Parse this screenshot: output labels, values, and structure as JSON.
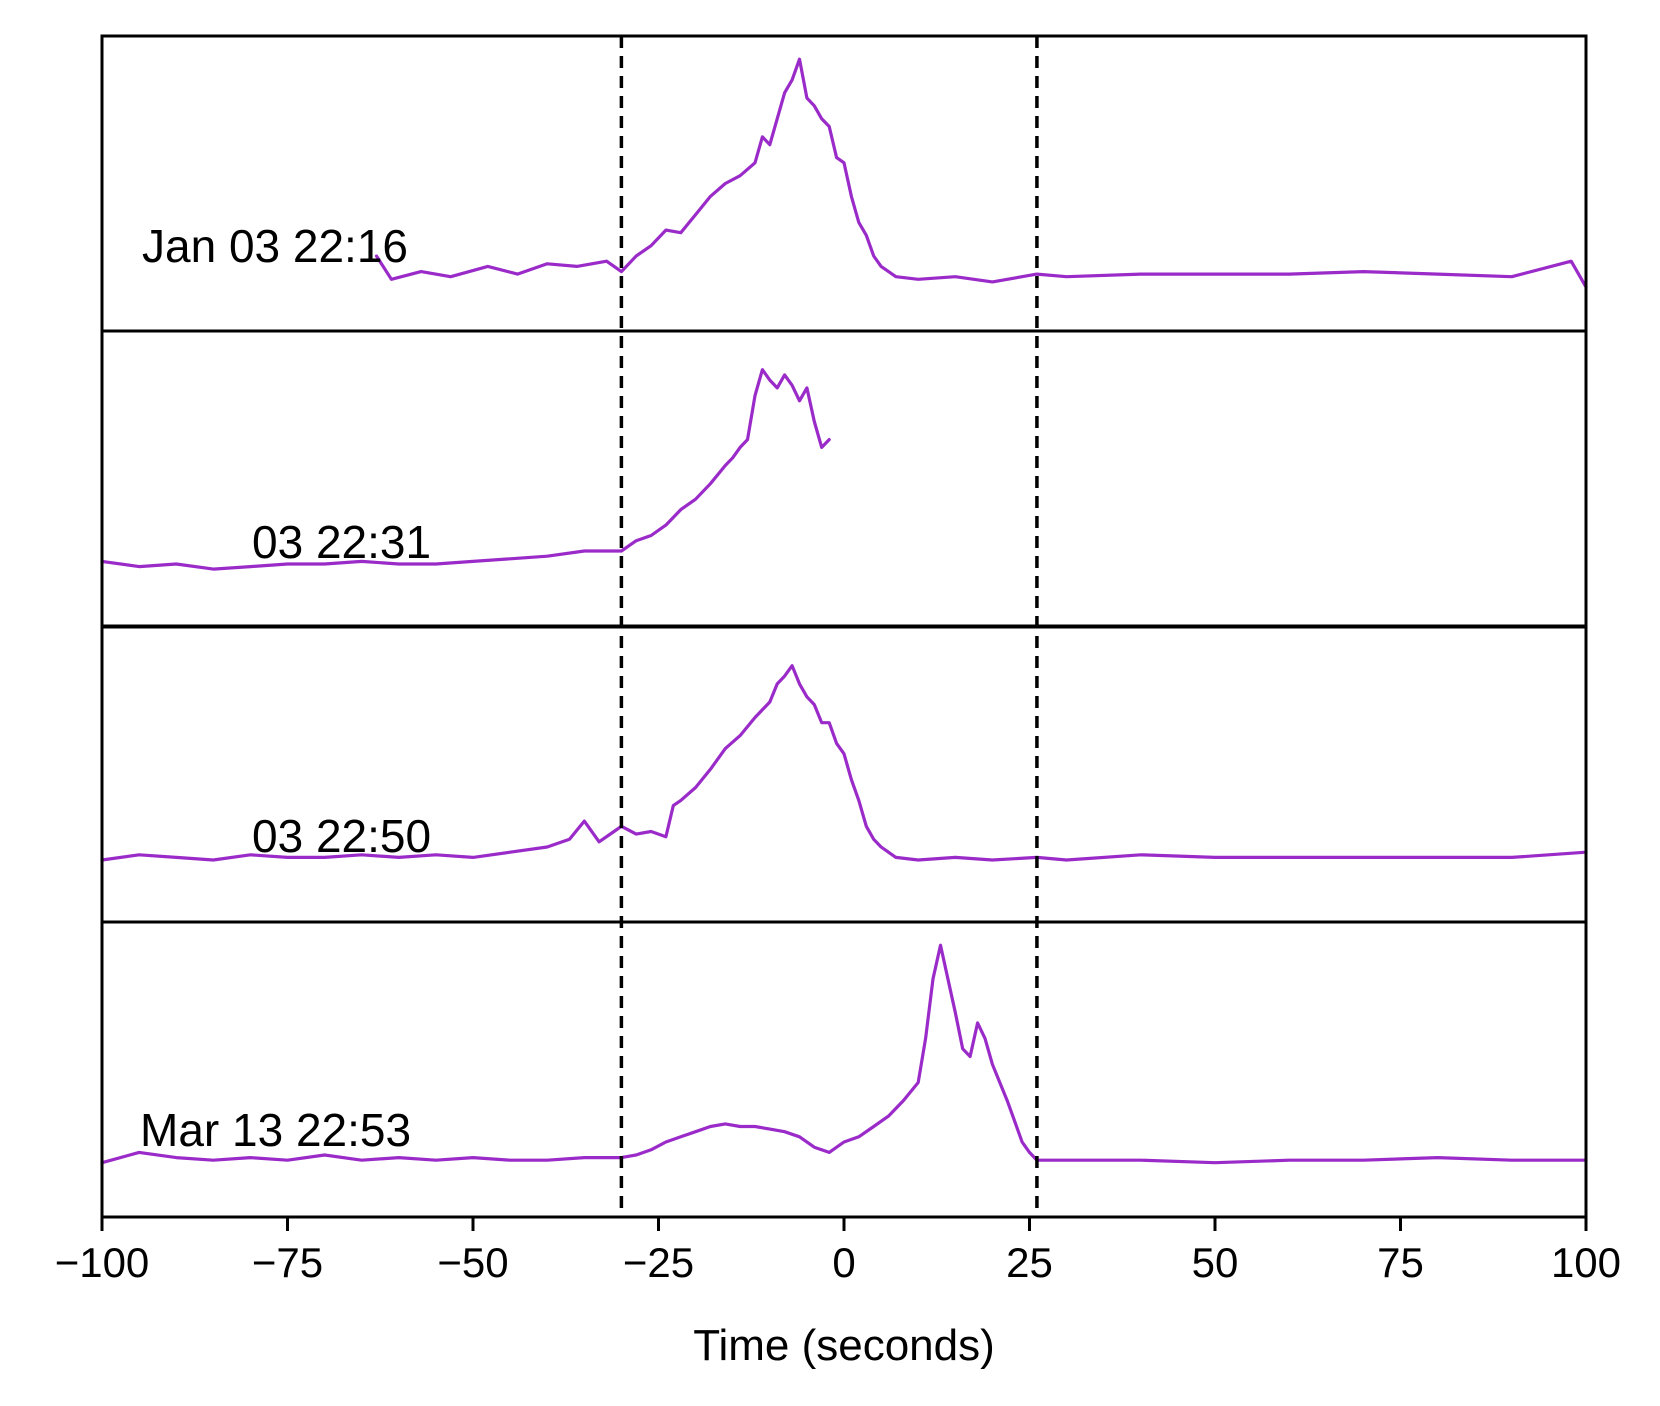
{
  "chart_data": {
    "type": "line",
    "xlabel": "Time (seconds)",
    "xlim": [
      -100,
      100
    ],
    "xticks": [
      -100,
      -75,
      -50,
      -25,
      0,
      25,
      50,
      75,
      100
    ],
    "xtick_labels": [
      "−100",
      "−75",
      "−50",
      "−25",
      "0",
      "25",
      "50",
      "75",
      "100"
    ],
    "vlines": [
      -30,
      26
    ],
    "vline_style": "dashed",
    "line_color": "#9a2bc9",
    "y_axis_shown": false,
    "panels": [
      {
        "label": "Jan 03 22:16",
        "ylim": [
          0,
          1
        ],
        "points": [
          [
            -63,
            0.22
          ],
          [
            -61,
            0.13
          ],
          [
            -57,
            0.16
          ],
          [
            -53,
            0.14
          ],
          [
            -48,
            0.18
          ],
          [
            -44,
            0.15
          ],
          [
            -40,
            0.19
          ],
          [
            -36,
            0.18
          ],
          [
            -32,
            0.2
          ],
          [
            -30,
            0.16
          ],
          [
            -28,
            0.22
          ],
          [
            -26,
            0.26
          ],
          [
            -24,
            0.32
          ],
          [
            -22,
            0.31
          ],
          [
            -20,
            0.38
          ],
          [
            -18,
            0.45
          ],
          [
            -16,
            0.5
          ],
          [
            -14,
            0.53
          ],
          [
            -12,
            0.58
          ],
          [
            -11,
            0.68
          ],
          [
            -10,
            0.65
          ],
          [
            -9,
            0.75
          ],
          [
            -8,
            0.85
          ],
          [
            -7,
            0.9
          ],
          [
            -6,
            0.98
          ],
          [
            -5,
            0.83
          ],
          [
            -4,
            0.8
          ],
          [
            -3,
            0.75
          ],
          [
            -2,
            0.72
          ],
          [
            -1,
            0.6
          ],
          [
            0,
            0.58
          ],
          [
            1,
            0.45
          ],
          [
            2,
            0.35
          ],
          [
            3,
            0.3
          ],
          [
            4,
            0.22
          ],
          [
            5,
            0.18
          ],
          [
            7,
            0.14
          ],
          [
            10,
            0.13
          ],
          [
            15,
            0.14
          ],
          [
            20,
            0.12
          ],
          [
            26,
            0.15
          ],
          [
            30,
            0.14
          ],
          [
            40,
            0.15
          ],
          [
            50,
            0.15
          ],
          [
            60,
            0.15
          ],
          [
            70,
            0.16
          ],
          [
            80,
            0.15
          ],
          [
            90,
            0.14
          ],
          [
            98,
            0.2
          ],
          [
            100,
            0.1
          ]
        ]
      },
      {
        "label": "03 22:31",
        "ylim": [
          0,
          1
        ],
        "points": [
          [
            -100,
            0.18
          ],
          [
            -95,
            0.16
          ],
          [
            -90,
            0.17
          ],
          [
            -85,
            0.15
          ],
          [
            -80,
            0.16
          ],
          [
            -75,
            0.17
          ],
          [
            -70,
            0.17
          ],
          [
            -65,
            0.18
          ],
          [
            -60,
            0.17
          ],
          [
            -55,
            0.17
          ],
          [
            -50,
            0.18
          ],
          [
            -45,
            0.19
          ],
          [
            -40,
            0.2
          ],
          [
            -35,
            0.22
          ],
          [
            -30,
            0.22
          ],
          [
            -28,
            0.26
          ],
          [
            -26,
            0.28
          ],
          [
            -24,
            0.32
          ],
          [
            -22,
            0.38
          ],
          [
            -20,
            0.42
          ],
          [
            -18,
            0.48
          ],
          [
            -16,
            0.55
          ],
          [
            -15,
            0.58
          ],
          [
            -14,
            0.62
          ],
          [
            -13,
            0.65
          ],
          [
            -12,
            0.82
          ],
          [
            -11,
            0.92
          ],
          [
            -10,
            0.88
          ],
          [
            -9,
            0.85
          ],
          [
            -8,
            0.9
          ],
          [
            -7,
            0.86
          ],
          [
            -6,
            0.8
          ],
          [
            -5,
            0.85
          ],
          [
            -4,
            0.72
          ],
          [
            -3,
            0.62
          ],
          [
            -2,
            0.65
          ]
        ]
      },
      {
        "label": "03 22:50",
        "ylim": [
          0,
          1
        ],
        "points": [
          [
            -100,
            0.17
          ],
          [
            -95,
            0.19
          ],
          [
            -90,
            0.18
          ],
          [
            -85,
            0.17
          ],
          [
            -80,
            0.19
          ],
          [
            -75,
            0.18
          ],
          [
            -70,
            0.18
          ],
          [
            -65,
            0.19
          ],
          [
            -60,
            0.18
          ],
          [
            -55,
            0.19
          ],
          [
            -50,
            0.18
          ],
          [
            -45,
            0.2
          ],
          [
            -40,
            0.22
          ],
          [
            -37,
            0.25
          ],
          [
            -35,
            0.32
          ],
          [
            -33,
            0.24
          ],
          [
            -31,
            0.28
          ],
          [
            -30,
            0.3
          ],
          [
            -28,
            0.27
          ],
          [
            -26,
            0.28
          ],
          [
            -24,
            0.26
          ],
          [
            -23,
            0.38
          ],
          [
            -22,
            0.4
          ],
          [
            -20,
            0.45
          ],
          [
            -18,
            0.52
          ],
          [
            -16,
            0.6
          ],
          [
            -14,
            0.65
          ],
          [
            -12,
            0.72
          ],
          [
            -10,
            0.78
          ],
          [
            -9,
            0.85
          ],
          [
            -8,
            0.88
          ],
          [
            -7,
            0.92
          ],
          [
            -6,
            0.85
          ],
          [
            -5,
            0.8
          ],
          [
            -4,
            0.77
          ],
          [
            -3,
            0.7
          ],
          [
            -2,
            0.7
          ],
          [
            -1,
            0.62
          ],
          [
            0,
            0.58
          ],
          [
            1,
            0.48
          ],
          [
            2,
            0.4
          ],
          [
            3,
            0.3
          ],
          [
            4,
            0.25
          ],
          [
            5,
            0.22
          ],
          [
            7,
            0.18
          ],
          [
            10,
            0.17
          ],
          [
            15,
            0.18
          ],
          [
            20,
            0.17
          ],
          [
            26,
            0.18
          ],
          [
            30,
            0.17
          ],
          [
            40,
            0.19
          ],
          [
            50,
            0.18
          ],
          [
            60,
            0.18
          ],
          [
            70,
            0.18
          ],
          [
            80,
            0.18
          ],
          [
            90,
            0.18
          ],
          [
            100,
            0.2
          ]
        ]
      },
      {
        "label": "Mar 13 22:53",
        "ylim": [
          0,
          1
        ],
        "points": [
          [
            -100,
            0.14
          ],
          [
            -95,
            0.18
          ],
          [
            -90,
            0.16
          ],
          [
            -85,
            0.15
          ],
          [
            -80,
            0.16
          ],
          [
            -75,
            0.15
          ],
          [
            -70,
            0.17
          ],
          [
            -65,
            0.15
          ],
          [
            -60,
            0.16
          ],
          [
            -55,
            0.15
          ],
          [
            -50,
            0.16
          ],
          [
            -45,
            0.15
          ],
          [
            -40,
            0.15
          ],
          [
            -35,
            0.16
          ],
          [
            -30,
            0.16
          ],
          [
            -28,
            0.17
          ],
          [
            -26,
            0.19
          ],
          [
            -24,
            0.22
          ],
          [
            -22,
            0.24
          ],
          [
            -20,
            0.26
          ],
          [
            -18,
            0.28
          ],
          [
            -16,
            0.29
          ],
          [
            -14,
            0.28
          ],
          [
            -12,
            0.28
          ],
          [
            -10,
            0.27
          ],
          [
            -8,
            0.26
          ],
          [
            -6,
            0.24
          ],
          [
            -4,
            0.2
          ],
          [
            -2,
            0.18
          ],
          [
            0,
            0.22
          ],
          [
            2,
            0.24
          ],
          [
            4,
            0.28
          ],
          [
            6,
            0.32
          ],
          [
            8,
            0.38
          ],
          [
            10,
            0.45
          ],
          [
            11,
            0.62
          ],
          [
            12,
            0.85
          ],
          [
            13,
            0.98
          ],
          [
            14,
            0.85
          ],
          [
            15,
            0.72
          ],
          [
            16,
            0.58
          ],
          [
            17,
            0.55
          ],
          [
            18,
            0.68
          ],
          [
            19,
            0.62
          ],
          [
            20,
            0.52
          ],
          [
            21,
            0.45
          ],
          [
            22,
            0.38
          ],
          [
            23,
            0.3
          ],
          [
            24,
            0.22
          ],
          [
            25,
            0.18
          ],
          [
            26,
            0.15
          ],
          [
            30,
            0.15
          ],
          [
            40,
            0.15
          ],
          [
            50,
            0.14
          ],
          [
            60,
            0.15
          ],
          [
            70,
            0.15
          ],
          [
            80,
            0.16
          ],
          [
            90,
            0.15
          ],
          [
            100,
            0.15
          ]
        ]
      }
    ]
  }
}
